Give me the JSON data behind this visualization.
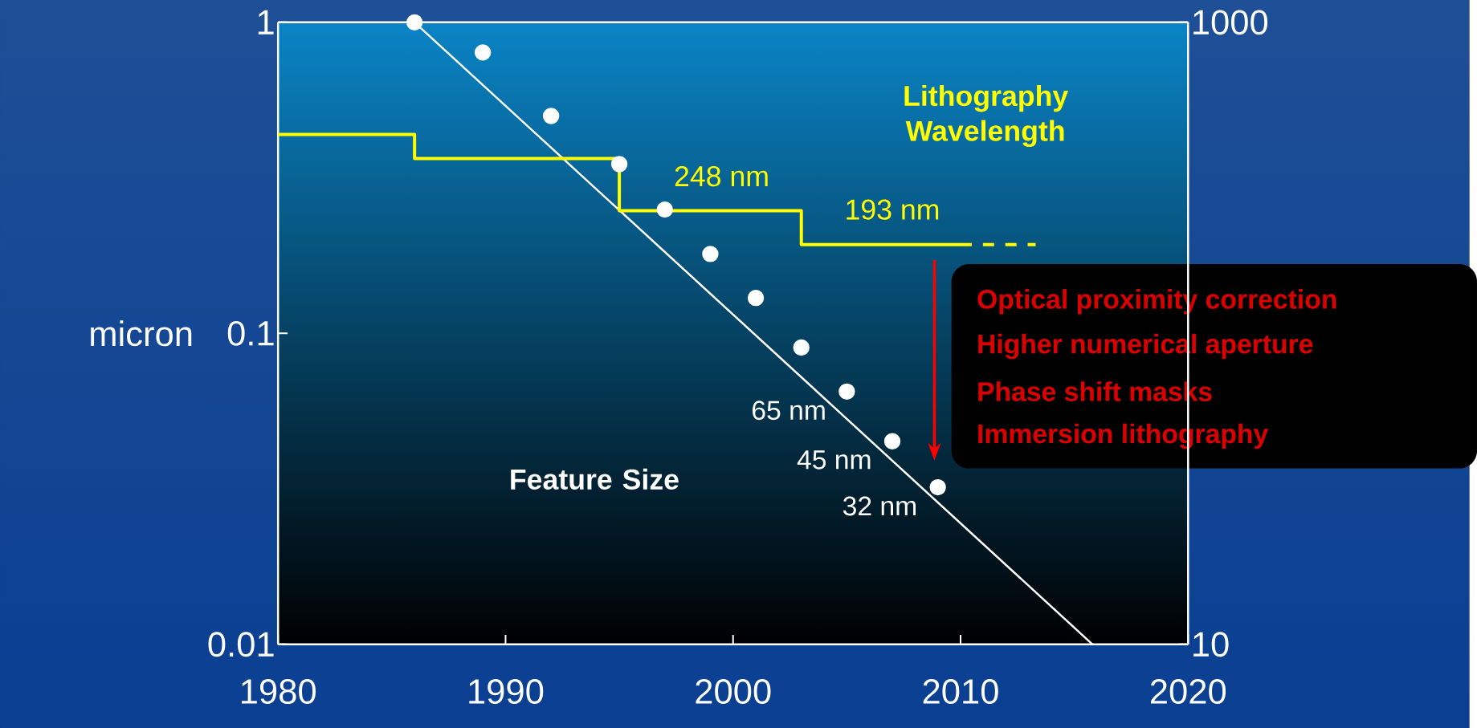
{
  "chart_data": {
    "type": "line",
    "ylabel": "micron",
    "xlim": [
      1980,
      2020
    ],
    "xticks": [
      1980,
      1990,
      2000,
      2010,
      2020
    ],
    "ylim": [
      0.01,
      1
    ],
    "yticks": [
      1,
      0.1,
      0.01
    ],
    "y2lim": [
      10,
      1000
    ],
    "y2ticks": [
      10,
      1000
    ],
    "log": "y",
    "grid": false,
    "series": [
      {
        "type": "scatter",
        "color": "#ffffff",
        "x": [
          1986,
          1989,
          1992,
          1995,
          1997,
          1999,
          2001,
          2003,
          2005,
          2007,
          2009
        ],
        "values": [
          1,
          0.8,
          0.5,
          0.35,
          0.25,
          0.18,
          0.13,
          0.09,
          0.065,
          0.045,
          0.032
        ]
      },
      {
        "color": "#ffffff",
        "x": [
          1986,
          2015.8
        ],
        "values": [
          1,
          0.01
        ]
      },
      {
        "type": "step",
        "color": "#ffff00",
        "x": [
          1980,
          1986,
          1995,
          2003,
          2010
        ],
        "values": [
          0.436,
          0.365,
          0.248,
          0.193,
          0.193
        ]
      },
      {
        "type": "line",
        "line_style": "dashed",
        "color": "#ffff00",
        "x": [
          2010,
          2013.3
        ],
        "values": [
          0.193,
          0.193
        ]
      }
    ],
    "annotations": [
      "Lithography Wavelength",
      "248 nm",
      "193 nm",
      "Feature Size",
      {
        "text": "65 nm",
        "x": 2005,
        "y": 0.065
      },
      {
        "text": "45 nm",
        "x": 2007,
        "y": 0.045
      },
      {
        "text": "32 nm",
        "x": 2009,
        "y": 0.032
      },
      "Optical proximity correction",
      "Higher numerical aperture",
      "Phase shift masks",
      "Immersion lithography"
    ]
  }
}
